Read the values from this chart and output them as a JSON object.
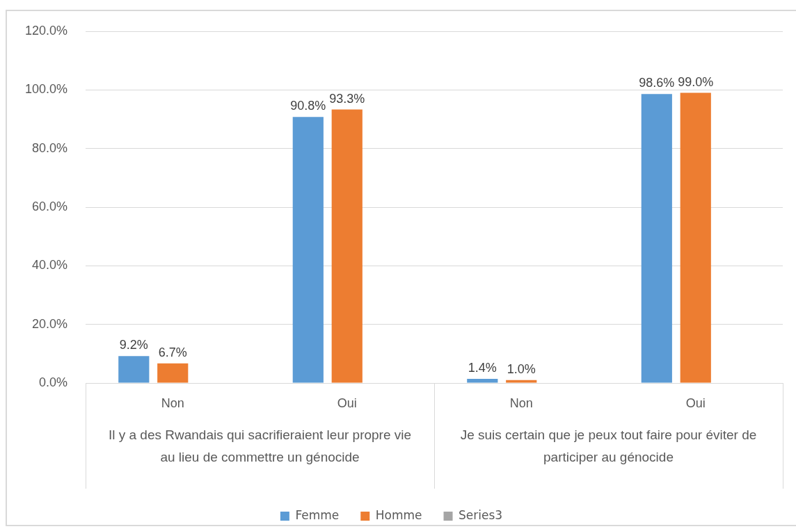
{
  "chart_data": {
    "type": "bar",
    "categories": [
      "Non",
      "Oui",
      "Non",
      "Oui"
    ],
    "series": [
      {
        "name": "Femme",
        "color": "#5b9bd5",
        "values": [
          9.2,
          90.8,
          1.4,
          98.6
        ],
        "value_labels": [
          "9.2%",
          "90.8%",
          "1.4%",
          "98.6%"
        ]
      },
      {
        "name": "Homme",
        "color": "#ed7d31",
        "values": [
          6.7,
          93.3,
          1.0,
          99.0
        ],
        "value_labels": [
          "6.7%",
          "93.3%",
          "1.0%",
          "99.0%"
        ]
      },
      {
        "name": "Series3",
        "color": "#a5a5a5",
        "values": [
          null,
          null,
          null,
          null
        ]
      }
    ],
    "ylim": [
      0,
      120
    ],
    "yticks": [
      {
        "value": 0,
        "label": "0.0%"
      },
      {
        "value": 20,
        "label": "20.0%"
      },
      {
        "value": 40,
        "label": "40.0%"
      },
      {
        "value": 60,
        "label": "60.0%"
      },
      {
        "value": 80,
        "label": "80.0%"
      },
      {
        "value": 100,
        "label": "100.0%"
      },
      {
        "value": 120,
        "label": "120.0%"
      }
    ],
    "grid": "y",
    "legend": "bottom",
    "annotations": [
      "Il y a des Rwandais qui sacrifieraient leur propre vie au lieu de commettre un génocide",
      "Je suis certain que je peux tout faire pour éviter de participer au génocide"
    ]
  }
}
